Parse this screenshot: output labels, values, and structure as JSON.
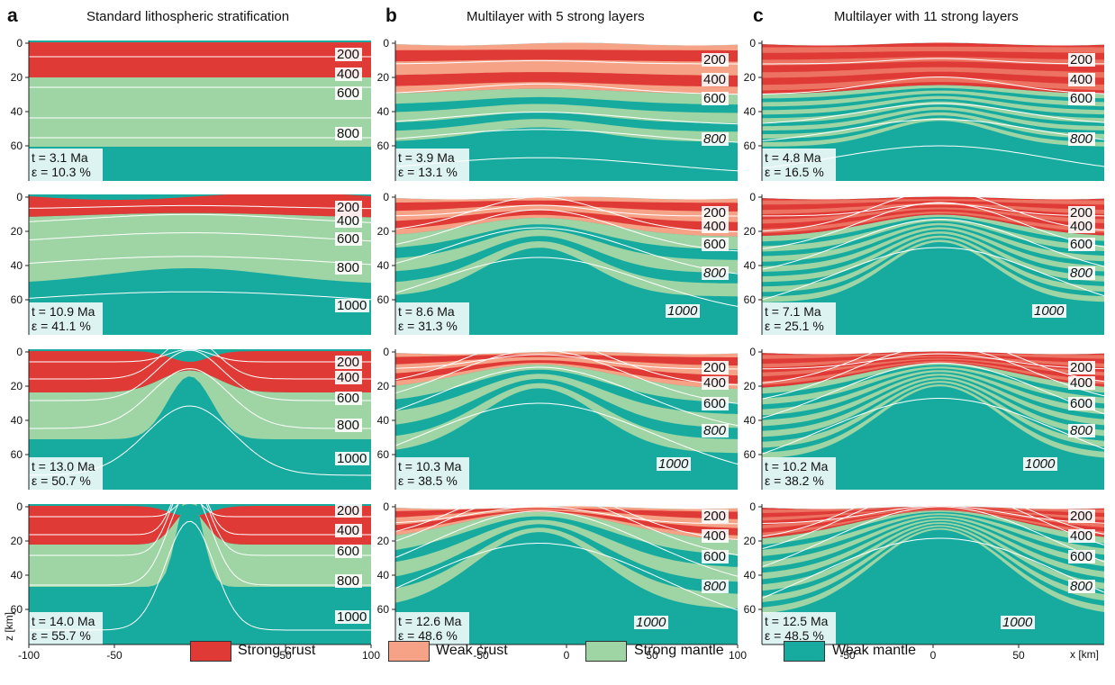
{
  "figure": {
    "columns": [
      {
        "letter": "a",
        "title": "Standard lithospheric stratification",
        "panels": [
          {
            "t": "t = 3.1 Ma",
            "e": "ε = 10.3 %"
          },
          {
            "t": "t = 10.9 Ma",
            "e": "ε = 41.1 %"
          },
          {
            "t": "t = 13.0 Ma",
            "e": "ε = 50.7 %"
          },
          {
            "t": "t = 14.0 Ma",
            "e": "ε = 55.7 %"
          }
        ]
      },
      {
        "letter": "b",
        "title": "Multilayer with 5 strong layers",
        "panels": [
          {
            "t": "t = 3.9 Ma",
            "e": "ε = 13.1 %"
          },
          {
            "t": "t = 8.6 Ma",
            "e": "ε = 31.3 %"
          },
          {
            "t": "t = 10.3 Ma",
            "e": "ε = 38.5 %"
          },
          {
            "t": "t = 12.6 Ma",
            "e": "ε = 48.6 %"
          }
        ]
      },
      {
        "letter": "c",
        "title": "Multilayer with 11 strong layers",
        "panels": [
          {
            "t": "t = 4.8 Ma",
            "e": "ε = 16.5 %"
          },
          {
            "t": "t = 7.1 Ma",
            "e": "ε = 25.1 %"
          },
          {
            "t": "t = 10.2 Ma",
            "e": "ε = 38.2 %"
          },
          {
            "t": "t = 12.5 Ma",
            "e": "ε = 48.5 %"
          }
        ]
      }
    ],
    "isotherms": [
      "200",
      "400",
      "600",
      "800",
      "1000"
    ],
    "y_ticks": [
      "0",
      "20",
      "40",
      "60"
    ],
    "x_ticks": [
      "-100",
      "-50",
      "0",
      "50",
      "100"
    ],
    "x_ticks_bc": [
      "-50",
      "0",
      "50",
      "100"
    ],
    "x_ticks_c": [
      "-50",
      "0",
      "50"
    ],
    "y_axis_label": "z [km]",
    "x_axis_label": "x [km]",
    "legend": [
      {
        "label": "Strong crust",
        "color": "#df3a35"
      },
      {
        "label": "Weak crust",
        "color": "#f5a287"
      },
      {
        "label": "Strong mantle",
        "color": "#9fd5a4"
      },
      {
        "label": "Weak mantle",
        "color": "#17aba0"
      }
    ]
  }
}
